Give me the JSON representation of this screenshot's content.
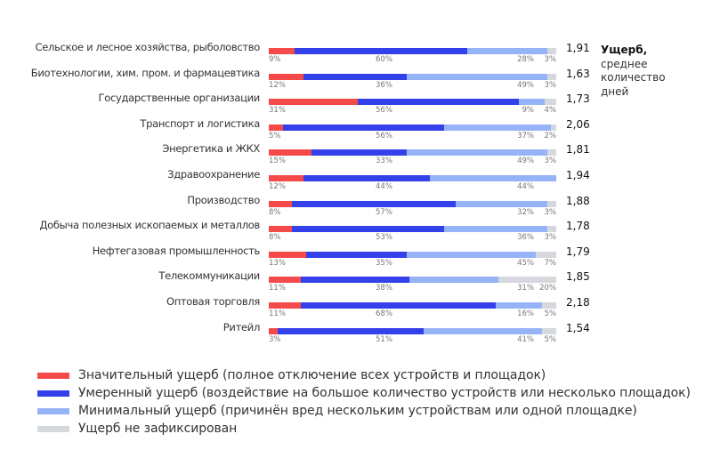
{
  "chart_data": {
    "type": "bar",
    "orientation": "horizontal",
    "stacked": true,
    "categories": [
      "Сельское и лесное хозяйства, рыболовство",
      "Биотехнологии, хим. пром. и фармацевтика",
      "Государственные организации",
      "Транспорт и логистика",
      "Энергетика и ЖКХ",
      "Здравоохранение",
      "Производство",
      "Добыча полезных ископаемых и металлов",
      "Нефтегазовая промышленность",
      "Телекоммуникации",
      "Оптовая торговля",
      "Ритейл"
    ],
    "series": [
      {
        "name": "Значительный ущерб (полное отключение всех устройств и площадок)",
        "color": "#f44a4a",
        "values": [
          9,
          12,
          31,
          5,
          15,
          12,
          8,
          8,
          13,
          11,
          11,
          3
        ],
        "labels": [
          "9%",
          "12%",
          "31%",
          "5%",
          "15%",
          "12%",
          "8%",
          "8%",
          "13%",
          "11%",
          "11%",
          "3%"
        ]
      },
      {
        "name": "Умеренный ущерб (воздействие на большое количество устройств или несколько площадок)",
        "color": "#3440ea",
        "values": [
          60,
          36,
          56,
          56,
          33,
          44,
          57,
          53,
          35,
          38,
          68,
          51
        ],
        "labels": [
          "60%",
          "36%",
          "56%",
          "56%",
          "33%",
          "44%",
          "57%",
          "53%",
          "35%",
          "38%",
          "68%",
          "51%"
        ]
      },
      {
        "name": "Минимальный ущерб (причинён вред нескольким устройствам или одной площадке)",
        "color": "#97b3f7",
        "values": [
          28,
          49,
          9,
          37,
          49,
          44,
          32,
          36,
          45,
          31,
          16,
          41
        ],
        "labels": [
          "28%",
          "49%",
          "9%",
          "37%",
          "49%",
          "44%",
          "32%",
          "36%",
          "45%",
          "31%",
          "16%",
          "41%"
        ]
      },
      {
        "name": "Ущерб не зафиксирован",
        "color": "#d5d8dc",
        "values": [
          3,
          3,
          4,
          2,
          3,
          0,
          3,
          3,
          7,
          20,
          5,
          5
        ],
        "labels": [
          "3%",
          "3%",
          "4%",
          "2%",
          "3%",
          "",
          "3%",
          "3%",
          "7%",
          "20%",
          "5%",
          "5%"
        ]
      }
    ],
    "avg_days": [
      "1,91",
      "1,63",
      "1,73",
      "2,06",
      "1,81",
      "1,94",
      "1,88",
      "1,78",
      "1,79",
      "1,85",
      "2,18",
      "1,54"
    ],
    "side_title": {
      "bold": "Ущерб,",
      "rest": [
        "среднее",
        "количество",
        "дней"
      ]
    },
    "xlim": [
      0,
      100
    ],
    "legend_position": "bottom-left"
  }
}
